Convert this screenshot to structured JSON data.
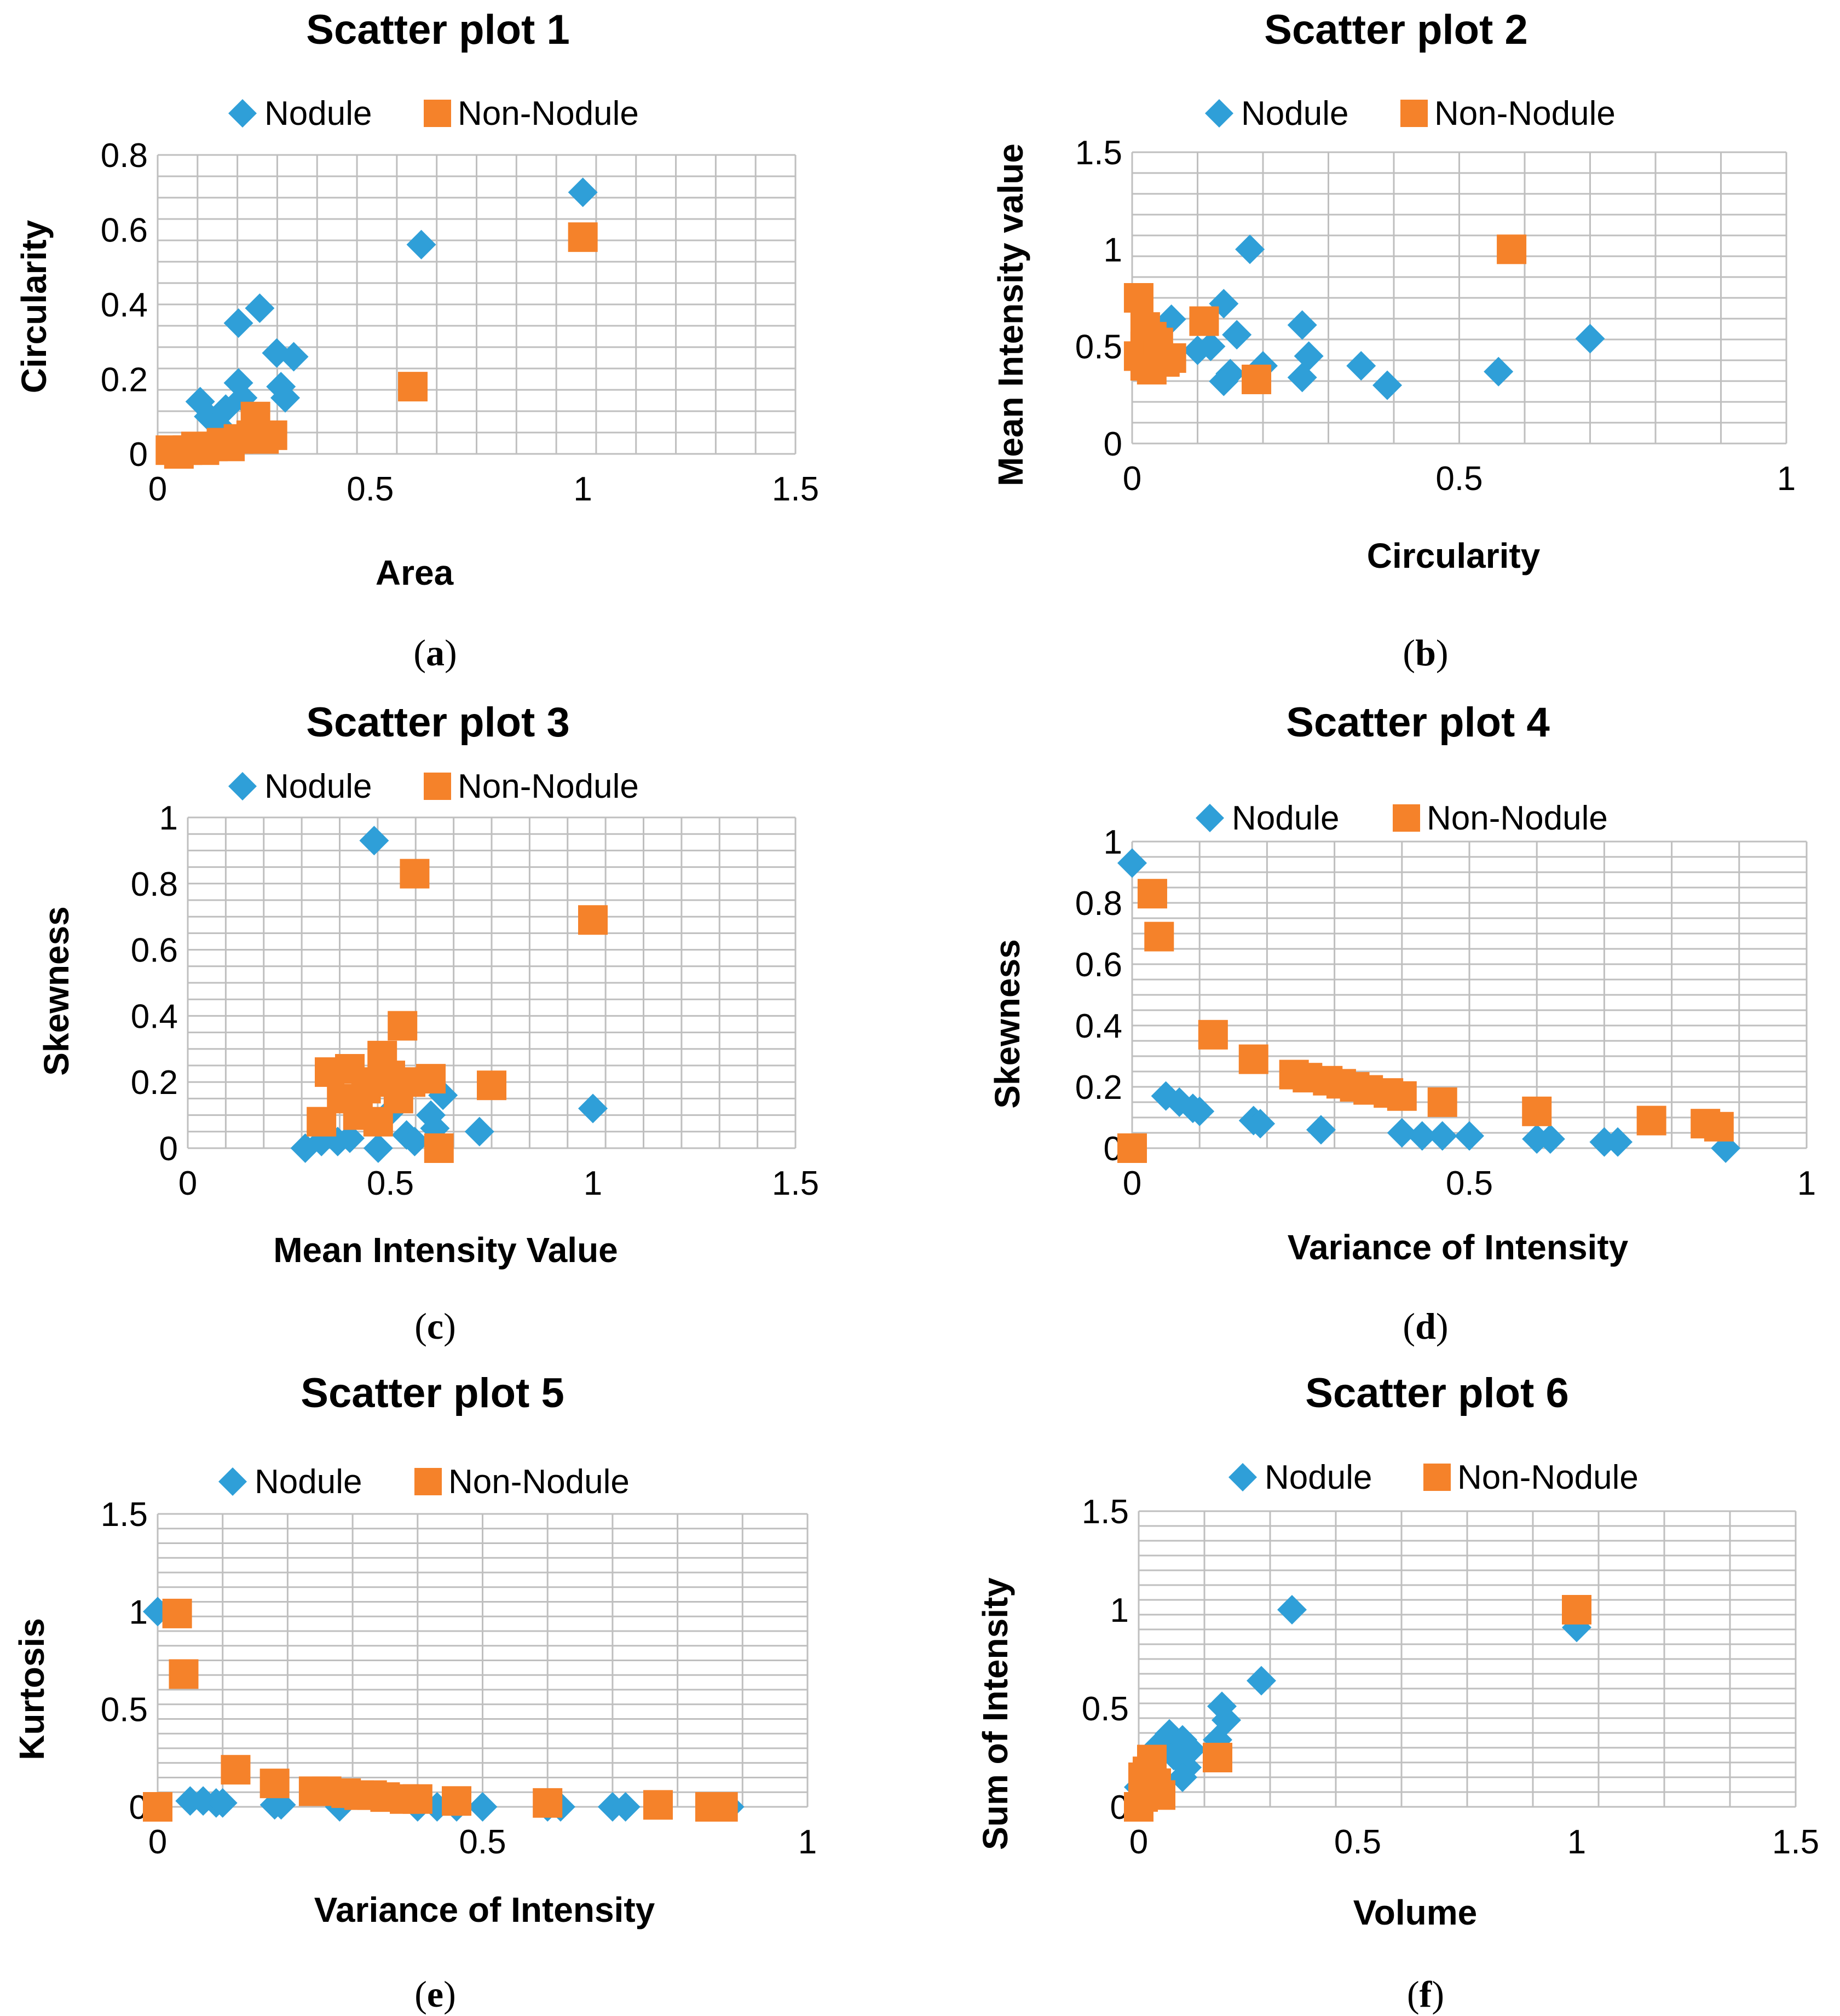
{
  "colors": {
    "nodule": "#2f9fd8",
    "non_nodule": "#f5822a",
    "grid": "#bfbfbf"
  },
  "legend": {
    "nodule_label": "Nodule",
    "non_nodule_label": "Non-Nodule"
  },
  "chart_data": [
    {
      "type": "scatter",
      "caption": "(a)",
      "title": "Scatter plot 1",
      "xlabel": "Area",
      "ylabel": "Circularity",
      "xlim": [
        0,
        1.5
      ],
      "ylim": [
        0,
        0.8
      ],
      "xticks": [
        0,
        0.5,
        1,
        1.5
      ],
      "xtick_labels": [
        "0",
        "0.5",
        "1",
        "1.5"
      ],
      "yticks": [
        0,
        0.2,
        0.4,
        0.6,
        0.8
      ],
      "ytick_labels": [
        "0",
        "0.2",
        "0.4",
        "0.6",
        "0.8"
      ],
      "series": [
        {
          "name": "Nodule",
          "points": [
            [
              0.1,
              0.14
            ],
            [
              0.12,
              0.1
            ],
            [
              0.14,
              0.08
            ],
            [
              0.16,
              0.12
            ],
            [
              0.19,
              0.35
            ],
            [
              0.24,
              0.39
            ],
            [
              0.19,
              0.19
            ],
            [
              0.2,
              0.15
            ],
            [
              0.28,
              0.27
            ],
            [
              0.32,
              0.26
            ],
            [
              0.29,
              0.18
            ],
            [
              0.3,
              0.15
            ],
            [
              0.62,
              0.56
            ],
            [
              1.0,
              0.7
            ],
            [
              0.05,
              0.01
            ],
            [
              0.08,
              0.02
            ]
          ]
        },
        {
          "name": "Non-Nodule",
          "points": [
            [
              0.03,
              0.01
            ],
            [
              0.05,
              0.0
            ],
            [
              0.07,
              0.01
            ],
            [
              0.09,
              0.02
            ],
            [
              0.11,
              0.01
            ],
            [
              0.13,
              0.02
            ],
            [
              0.15,
              0.03
            ],
            [
              0.17,
              0.02
            ],
            [
              0.19,
              0.04
            ],
            [
              0.22,
              0.05
            ],
            [
              0.23,
              0.1
            ],
            [
              0.25,
              0.04
            ],
            [
              0.27,
              0.05
            ],
            [
              0.6,
              0.18
            ],
            [
              1.0,
              0.58
            ]
          ]
        }
      ]
    },
    {
      "type": "scatter",
      "caption": "(b)",
      "title": "Scatter plot 2",
      "xlabel": "Circularity",
      "ylabel": "Mean Intensity value",
      "xlim": [
        0,
        1
      ],
      "ylim": [
        0,
        1.5
      ],
      "xticks": [
        0,
        0.5,
        1
      ],
      "xtick_labels": [
        "0",
        "0.5",
        "1"
      ],
      "yticks": [
        0,
        0.5,
        1,
        1.5
      ],
      "ytick_labels": [
        "0",
        "0.5",
        "1",
        "1.5"
      ],
      "series": [
        {
          "name": "Nodule",
          "points": [
            [
              0.06,
              0.64
            ],
            [
              0.1,
              0.48
            ],
            [
              0.12,
              0.5
            ],
            [
              0.14,
              0.72
            ],
            [
              0.16,
              0.56
            ],
            [
              0.18,
              1.0
            ],
            [
              0.2,
              0.4
            ],
            [
              0.14,
              0.32
            ],
            [
              0.15,
              0.36
            ],
            [
              0.26,
              0.61
            ],
            [
              0.27,
              0.45
            ],
            [
              0.26,
              0.34
            ],
            [
              0.35,
              0.4
            ],
            [
              0.39,
              0.3
            ],
            [
              0.56,
              0.37
            ],
            [
              0.7,
              0.54
            ]
          ]
        },
        {
          "name": "Non-Nodule",
          "points": [
            [
              0.01,
              0.75
            ],
            [
              0.01,
              0.45
            ],
            [
              0.02,
              0.6
            ],
            [
              0.02,
              0.5
            ],
            [
              0.03,
              0.55
            ],
            [
              0.02,
              0.4
            ],
            [
              0.04,
              0.45
            ],
            [
              0.03,
              0.38
            ],
            [
              0.05,
              0.42
            ],
            [
              0.04,
              0.52
            ],
            [
              0.06,
              0.44
            ],
            [
              0.11,
              0.63
            ],
            [
              0.19,
              0.33
            ],
            [
              0.58,
              1.0
            ]
          ]
        }
      ]
    },
    {
      "type": "scatter",
      "caption": "(c)",
      "title": "Scatter plot 3",
      "xlabel": "Mean Intensity Value",
      "ylabel": "Skewness",
      "xlim": [
        0,
        1.5
      ],
      "ylim": [
        0,
        1
      ],
      "xticks": [
        0,
        0.5,
        1,
        1.5
      ],
      "xtick_labels": [
        "0",
        "0.5",
        "1",
        "1.5"
      ],
      "yticks": [
        0,
        0.2,
        0.4,
        0.6,
        0.8,
        1
      ],
      "ytick_labels": [
        "0",
        "0.2",
        "0.4",
        "0.6",
        "0.8",
        "1"
      ],
      "series": [
        {
          "name": "Nodule",
          "points": [
            [
              0.29,
              0.0
            ],
            [
              0.33,
              0.02
            ],
            [
              0.37,
              0.02
            ],
            [
              0.4,
              0.03
            ],
            [
              0.46,
              0.93
            ],
            [
              0.47,
              0.0
            ],
            [
              0.5,
              0.11
            ],
            [
              0.54,
              0.04
            ],
            [
              0.56,
              0.02
            ],
            [
              0.6,
              0.1
            ],
            [
              0.61,
              0.06
            ],
            [
              0.63,
              0.16
            ],
            [
              0.72,
              0.05
            ],
            [
              1.0,
              0.12
            ]
          ]
        },
        {
          "name": "Non-Nodule",
          "points": [
            [
              0.33,
              0.08
            ],
            [
              0.35,
              0.23
            ],
            [
              0.38,
              0.15
            ],
            [
              0.4,
              0.24
            ],
            [
              0.42,
              0.1
            ],
            [
              0.44,
              0.18
            ],
            [
              0.46,
              0.2
            ],
            [
              0.47,
              0.08
            ],
            [
              0.48,
              0.28
            ],
            [
              0.5,
              0.22
            ],
            [
              0.52,
              0.15
            ],
            [
              0.53,
              0.37
            ],
            [
              0.55,
              0.2
            ],
            [
              0.56,
              0.83
            ],
            [
              0.6,
              0.21
            ],
            [
              0.62,
              0.0
            ],
            [
              0.75,
              0.19
            ],
            [
              1.0,
              0.69
            ]
          ]
        }
      ]
    },
    {
      "type": "scatter",
      "caption": "(d)",
      "title": "Scatter plot 4",
      "xlabel": "Variance of Intensity",
      "ylabel": "Skewness",
      "xlim": [
        0,
        1
      ],
      "ylim": [
        0,
        1
      ],
      "xticks": [
        0,
        0.5,
        1
      ],
      "xtick_labels": [
        "0",
        "0.5",
        "1"
      ],
      "yticks": [
        0,
        0.2,
        0.4,
        0.6,
        0.8,
        1
      ],
      "ytick_labels": [
        "0",
        "0.2",
        "0.4",
        "0.6",
        "0.8",
        "1"
      ],
      "series": [
        {
          "name": "Nodule",
          "points": [
            [
              0.0,
              0.93
            ],
            [
              0.05,
              0.17
            ],
            [
              0.07,
              0.15
            ],
            [
              0.09,
              0.13
            ],
            [
              0.1,
              0.12
            ],
            [
              0.18,
              0.09
            ],
            [
              0.19,
              0.08
            ],
            [
              0.28,
              0.06
            ],
            [
              0.4,
              0.05
            ],
            [
              0.43,
              0.04
            ],
            [
              0.46,
              0.04
            ],
            [
              0.5,
              0.04
            ],
            [
              0.6,
              0.03
            ],
            [
              0.62,
              0.03
            ],
            [
              0.7,
              0.02
            ],
            [
              0.72,
              0.02
            ],
            [
              0.88,
              0.0
            ]
          ]
        },
        {
          "name": "Non-Nodule",
          "points": [
            [
              0.0,
              0.0
            ],
            [
              0.03,
              0.83
            ],
            [
              0.04,
              0.69
            ],
            [
              0.12,
              0.37
            ],
            [
              0.18,
              0.29
            ],
            [
              0.24,
              0.24
            ],
            [
              0.26,
              0.23
            ],
            [
              0.29,
              0.22
            ],
            [
              0.31,
              0.21
            ],
            [
              0.33,
              0.2
            ],
            [
              0.35,
              0.19
            ],
            [
              0.38,
              0.18
            ],
            [
              0.4,
              0.17
            ],
            [
              0.46,
              0.15
            ],
            [
              0.6,
              0.12
            ],
            [
              0.77,
              0.09
            ],
            [
              0.85,
              0.08
            ],
            [
              0.87,
              0.07
            ]
          ]
        }
      ]
    },
    {
      "type": "scatter",
      "caption": "(e)",
      "title": "Scatter plot 5",
      "xlabel": "Variance of Intensity",
      "ylabel": "Kurtosis",
      "xlim": [
        0,
        1
      ],
      "ylim": [
        0,
        1.5
      ],
      "xticks": [
        0,
        0.5,
        1
      ],
      "xtick_labels": [
        "0",
        "0.5",
        "1"
      ],
      "yticks": [
        0,
        0.5,
        1,
        1.5
      ],
      "ytick_labels": [
        "0",
        "0.5",
        "1",
        "1.5"
      ],
      "series": [
        {
          "name": "Nodule",
          "points": [
            [
              0.0,
              1.0
            ],
            [
              0.05,
              0.03
            ],
            [
              0.07,
              0.03
            ],
            [
              0.09,
              0.02
            ],
            [
              0.1,
              0.02
            ],
            [
              0.18,
              0.01
            ],
            [
              0.19,
              0.01
            ],
            [
              0.28,
              0.0
            ],
            [
              0.4,
              0.0
            ],
            [
              0.43,
              0.0
            ],
            [
              0.46,
              0.0
            ],
            [
              0.5,
              0.0
            ],
            [
              0.6,
              0.0
            ],
            [
              0.62,
              0.0
            ],
            [
              0.7,
              0.0
            ],
            [
              0.72,
              0.0
            ],
            [
              0.88,
              0.0
            ]
          ]
        },
        {
          "name": "Non-Nodule",
          "points": [
            [
              0.0,
              0.0
            ],
            [
              0.03,
              0.99
            ],
            [
              0.04,
              0.68
            ],
            [
              0.12,
              0.19
            ],
            [
              0.18,
              0.12
            ],
            [
              0.24,
              0.08
            ],
            [
              0.26,
              0.08
            ],
            [
              0.29,
              0.07
            ],
            [
              0.31,
              0.06
            ],
            [
              0.33,
              0.06
            ],
            [
              0.35,
              0.05
            ],
            [
              0.38,
              0.04
            ],
            [
              0.4,
              0.04
            ],
            [
              0.46,
              0.03
            ],
            [
              0.6,
              0.02
            ],
            [
              0.77,
              0.01
            ],
            [
              0.85,
              0.0
            ],
            [
              0.87,
              0.0
            ]
          ]
        }
      ]
    },
    {
      "type": "scatter",
      "caption": "(f)",
      "title": "Scatter plot 6",
      "xlabel": "Volume",
      "ylabel": "Sum of Intensity",
      "xlim": [
        0,
        1.5
      ],
      "ylim": [
        0,
        1.5
      ],
      "xticks": [
        0,
        0.5,
        1,
        1.5
      ],
      "xtick_labels": [
        "0",
        "0.5",
        "1",
        "1.5"
      ],
      "yticks": [
        0,
        0.5,
        1,
        1.5
      ],
      "ytick_labels": [
        "0",
        "0.5",
        "1",
        "1.5"
      ],
      "series": [
        {
          "name": "Nodule",
          "points": [
            [
              0.0,
              0.1
            ],
            [
              0.02,
              0.18
            ],
            [
              0.04,
              0.3
            ],
            [
              0.07,
              0.37
            ],
            [
              0.08,
              0.26
            ],
            [
              0.1,
              0.34
            ],
            [
              0.11,
              0.2
            ],
            [
              0.1,
              0.15
            ],
            [
              0.12,
              0.29
            ],
            [
              0.18,
              0.34
            ],
            [
              0.2,
              0.44
            ],
            [
              0.19,
              0.51
            ],
            [
              0.28,
              0.64
            ],
            [
              0.35,
              1.0
            ],
            [
              1.0,
              0.91
            ]
          ]
        },
        {
          "name": "Non-Nodule",
          "points": [
            [
              0.0,
              0.0
            ],
            [
              0.01,
              0.05
            ],
            [
              0.02,
              0.1
            ],
            [
              0.01,
              0.15
            ],
            [
              0.03,
              0.08
            ],
            [
              0.02,
              0.18
            ],
            [
              0.03,
              0.24
            ],
            [
              0.04,
              0.12
            ],
            [
              0.05,
              0.06
            ],
            [
              0.18,
              0.25
            ],
            [
              1.0,
              1.0
            ]
          ]
        }
      ]
    }
  ]
}
